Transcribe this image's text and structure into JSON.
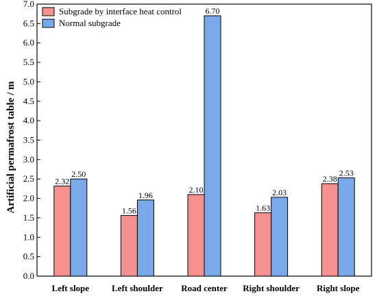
{
  "chart_data": {
    "type": "bar",
    "title": "",
    "xlabel": "",
    "ylabel": "Artificial permafrost table / m",
    "ylim": [
      0,
      7.0
    ],
    "ytick_step": 0.5,
    "categories": [
      "Left slope",
      "Left shoulder",
      "Road center",
      "Right shoulder",
      "Right slope"
    ],
    "series": [
      {
        "name": "Subgrade by interface heat control",
        "color": "#f4908e",
        "values": [
          2.32,
          1.56,
          2.1,
          1.63,
          2.38
        ],
        "labels": [
          "2.32",
          "1.56",
          "2.10",
          "1.63",
          "2.38"
        ]
      },
      {
        "name": "Normal subgrade",
        "color": "#7aa9ea",
        "values": [
          2.5,
          1.96,
          6.7,
          2.03,
          2.53
        ],
        "labels": [
          "2.50",
          "1.96",
          "6.70",
          "2.03",
          "2.53"
        ]
      }
    ],
    "legend_position": "top-left",
    "grid": false
  }
}
